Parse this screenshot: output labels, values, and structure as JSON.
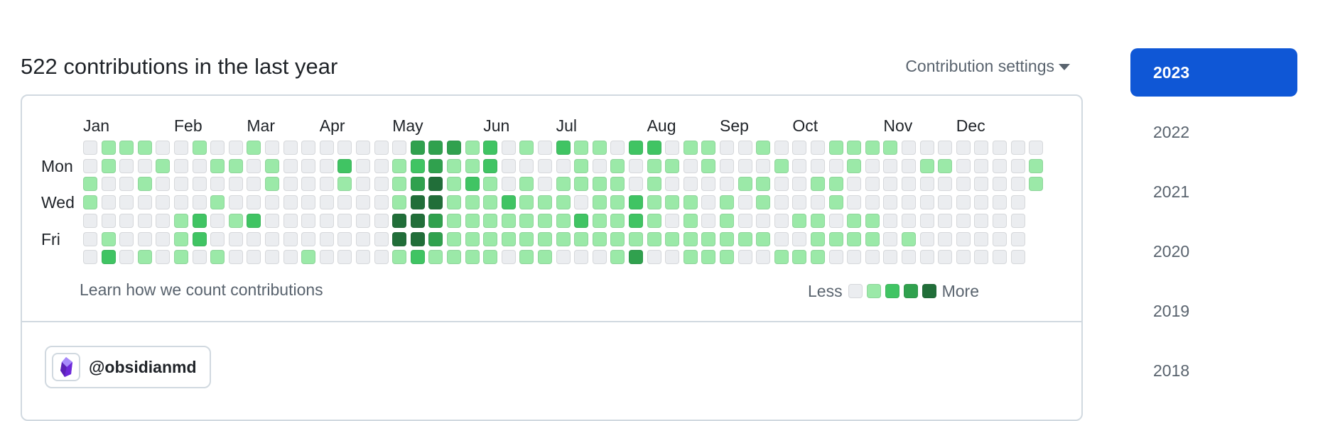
{
  "header": {
    "title": "522 contributions in the last year",
    "settings_label": "Contribution settings"
  },
  "calendar": {
    "months": [
      {
        "label": "Jan",
        "week": 0
      },
      {
        "label": "Feb",
        "week": 5
      },
      {
        "label": "Mar",
        "week": 9
      },
      {
        "label": "Apr",
        "week": 13
      },
      {
        "label": "May",
        "week": 17
      },
      {
        "label": "Jun",
        "week": 22
      },
      {
        "label": "Jul",
        "week": 26
      },
      {
        "label": "Aug",
        "week": 31
      },
      {
        "label": "Sep",
        "week": 35
      },
      {
        "label": "Oct",
        "week": 39
      },
      {
        "label": "Nov",
        "week": 44
      },
      {
        "label": "Dec",
        "week": 48
      }
    ],
    "weekdays": [
      {
        "label": "Mon",
        "row": 1
      },
      {
        "label": "Wed",
        "row": 3
      },
      {
        "label": "Fri",
        "row": 5
      }
    ],
    "colors": [
      "#ebedf0",
      "#9be9a8",
      "#40c463",
      "#30a14e",
      "#216e39"
    ],
    "weeks": [
      [
        0,
        0,
        1,
        1,
        0,
        0,
        0
      ],
      [
        1,
        1,
        0,
        0,
        0,
        1,
        2
      ],
      [
        1,
        0,
        0,
        0,
        0,
        0,
        0
      ],
      [
        1,
        0,
        1,
        0,
        0,
        0,
        1
      ],
      [
        0,
        1,
        0,
        0,
        0,
        0,
        0
      ],
      [
        0,
        0,
        0,
        0,
        1,
        1,
        1
      ],
      [
        1,
        0,
        0,
        0,
        2,
        2,
        0
      ],
      [
        0,
        1,
        0,
        1,
        0,
        0,
        1
      ],
      [
        0,
        1,
        0,
        0,
        1,
        0,
        0
      ],
      [
        1,
        0,
        0,
        0,
        2,
        0,
        0
      ],
      [
        0,
        1,
        1,
        0,
        0,
        0,
        0
      ],
      [
        0,
        0,
        0,
        0,
        0,
        0,
        0
      ],
      [
        0,
        0,
        0,
        0,
        0,
        0,
        1
      ],
      [
        0,
        0,
        0,
        0,
        0,
        0,
        0
      ],
      [
        0,
        2,
        1,
        0,
        0,
        0,
        0
      ],
      [
        0,
        0,
        0,
        0,
        0,
        0,
        0
      ],
      [
        0,
        0,
        0,
        0,
        0,
        0,
        0
      ],
      [
        0,
        1,
        1,
        1,
        4,
        4,
        1
      ],
      [
        3,
        2,
        3,
        4,
        4,
        4,
        2
      ],
      [
        3,
        3,
        4,
        4,
        3,
        3,
        1
      ],
      [
        3,
        1,
        1,
        1,
        1,
        1,
        1
      ],
      [
        1,
        1,
        2,
        1,
        1,
        1,
        1
      ],
      [
        2,
        2,
        1,
        1,
        1,
        1,
        1
      ],
      [
        0,
        0,
        0,
        2,
        1,
        1,
        0
      ],
      [
        1,
        0,
        1,
        1,
        1,
        1,
        1
      ],
      [
        0,
        0,
        0,
        1,
        1,
        1,
        1
      ],
      [
        2,
        0,
        1,
        1,
        1,
        1,
        0
      ],
      [
        1,
        1,
        1,
        0,
        2,
        1,
        0
      ],
      [
        1,
        0,
        1,
        1,
        1,
        1,
        0
      ],
      [
        0,
        1,
        1,
        1,
        1,
        1,
        1
      ],
      [
        2,
        0,
        0,
        2,
        2,
        1,
        3
      ],
      [
        2,
        1,
        1,
        1,
        1,
        1,
        0
      ],
      [
        0,
        1,
        0,
        1,
        0,
        1,
        0
      ],
      [
        1,
        0,
        0,
        1,
        1,
        1,
        1
      ],
      [
        1,
        1,
        0,
        0,
        0,
        1,
        1
      ],
      [
        0,
        0,
        0,
        1,
        1,
        1,
        1
      ],
      [
        0,
        0,
        1,
        0,
        0,
        1,
        0
      ],
      [
        1,
        0,
        1,
        1,
        0,
        1,
        0
      ],
      [
        0,
        1,
        0,
        0,
        0,
        0,
        1
      ],
      [
        0,
        0,
        0,
        0,
        1,
        0,
        1
      ],
      [
        0,
        0,
        1,
        0,
        1,
        1,
        1
      ],
      [
        1,
        0,
        1,
        1,
        0,
        1,
        0
      ],
      [
        1,
        1,
        0,
        0,
        1,
        1,
        0
      ],
      [
        1,
        0,
        0,
        0,
        1,
        1,
        0
      ],
      [
        1,
        0,
        0,
        0,
        0,
        0,
        0
      ],
      [
        0,
        0,
        0,
        0,
        0,
        1,
        0
      ],
      [
        0,
        1,
        0,
        0,
        0,
        0,
        0
      ],
      [
        0,
        1,
        0,
        0,
        0,
        0,
        0
      ],
      [
        0,
        0,
        0,
        0,
        0,
        0,
        0
      ],
      [
        0,
        0,
        0,
        0,
        0,
        0,
        0
      ],
      [
        0,
        0,
        0,
        0,
        0,
        0,
        0
      ],
      [
        0,
        0,
        0,
        0,
        0,
        0,
        0
      ],
      [
        0,
        1,
        1,
        null,
        null,
        null,
        null
      ]
    ],
    "learn_link": "Learn how we count contributions",
    "legend_less": "Less",
    "legend_more": "More"
  },
  "org": {
    "handle": "@obsidianmd",
    "avatar_icon": "obsidian-logo-icon"
  },
  "years": [
    "2023",
    "2022",
    "2021",
    "2020",
    "2019",
    "2018"
  ],
  "selected_year": "2023"
}
